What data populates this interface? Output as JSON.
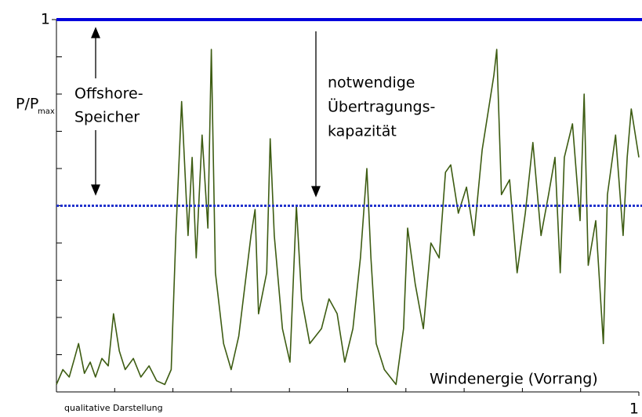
{
  "chart_data": {
    "type": "line",
    "ylabel": "P/P",
    "ylabel_sub": "max",
    "annotations": [
      [
        "Offshore-",
        "Speicher"
      ],
      [
        "notwendige",
        "Übertragungs-",
        "kapazität"
      ],
      "qualitative Darstellung"
    ],
    "xlim": [
      0,
      1
    ],
    "ylim": [
      0,
      1
    ],
    "xticks": [
      1
    ],
    "yticks": [
      1
    ],
    "xticks_minor": [
      0.1,
      0.2,
      0.3,
      0.4,
      0.5,
      0.6,
      0.7,
      0.8,
      0.9
    ],
    "yticks_minor": [
      0.1,
      0.2,
      0.3,
      0.4,
      0.5,
      0.6,
      0.7,
      0.8,
      0.9
    ],
    "reference_lines": [
      {
        "value": 1,
        "color": "#0000dd",
        "style": "solid"
      },
      {
        "value": 0.5,
        "color": "#2233cc",
        "style": "dotted"
      }
    ],
    "series": [
      {
        "name": "Windenergie (Vorrang)",
        "color": "#3d5c12",
        "x": [
          0,
          0.011,
          0.022,
          0.031,
          0.038,
          0.048,
          0.058,
          0.067,
          0.078,
          0.089,
          0.098,
          0.108,
          0.118,
          0.132,
          0.145,
          0.159,
          0.172,
          0.186,
          0.197,
          0.205,
          0.215,
          0.226,
          0.233,
          0.24,
          0.25,
          0.26,
          0.266,
          0.273,
          0.287,
          0.3,
          0.313,
          0.334,
          0.341,
          0.347,
          0.361,
          0.367,
          0.374,
          0.388,
          0.401,
          0.412,
          0.421,
          0.435,
          0.455,
          0.468,
          0.482,
          0.495,
          0.509,
          0.522,
          0.533,
          0.54,
          0.549,
          0.563,
          0.583,
          0.596,
          0.603,
          0.616,
          0.63,
          0.643,
          0.657,
          0.668,
          0.677,
          0.69,
          0.704,
          0.717,
          0.731,
          0.744,
          0.751,
          0.756,
          0.764,
          0.778,
          0.791,
          0.805,
          0.818,
          0.832,
          0.845,
          0.856,
          0.865,
          0.872,
          0.886,
          0.899,
          0.906,
          0.913,
          0.926,
          0.939,
          0.946,
          0.96,
          0.973,
          0.98,
          0.987,
          1.0
        ],
        "values": [
          0.02,
          0.06,
          0.04,
          0.09,
          0.13,
          0.05,
          0.08,
          0.04,
          0.09,
          0.07,
          0.21,
          0.11,
          0.06,
          0.09,
          0.04,
          0.07,
          0.03,
          0.02,
          0.06,
          0.42,
          0.78,
          0.42,
          0.63,
          0.36,
          0.69,
          0.44,
          0.92,
          0.32,
          0.13,
          0.06,
          0.15,
          0.42,
          0.49,
          0.21,
          0.32,
          0.68,
          0.42,
          0.17,
          0.08,
          0.5,
          0.25,
          0.13,
          0.17,
          0.25,
          0.21,
          0.08,
          0.17,
          0.36,
          0.6,
          0.36,
          0.13,
          0.06,
          0.02,
          0.17,
          0.44,
          0.29,
          0.17,
          0.4,
          0.36,
          0.59,
          0.61,
          0.48,
          0.55,
          0.42,
          0.65,
          0.78,
          0.85,
          0.92,
          0.53,
          0.57,
          0.32,
          0.48,
          0.67,
          0.42,
          0.53,
          0.63,
          0.32,
          0.63,
          0.72,
          0.46,
          0.8,
          0.34,
          0.46,
          0.13,
          0.53,
          0.69,
          0.42,
          0.63,
          0.76,
          0.63
        ]
      }
    ]
  }
}
